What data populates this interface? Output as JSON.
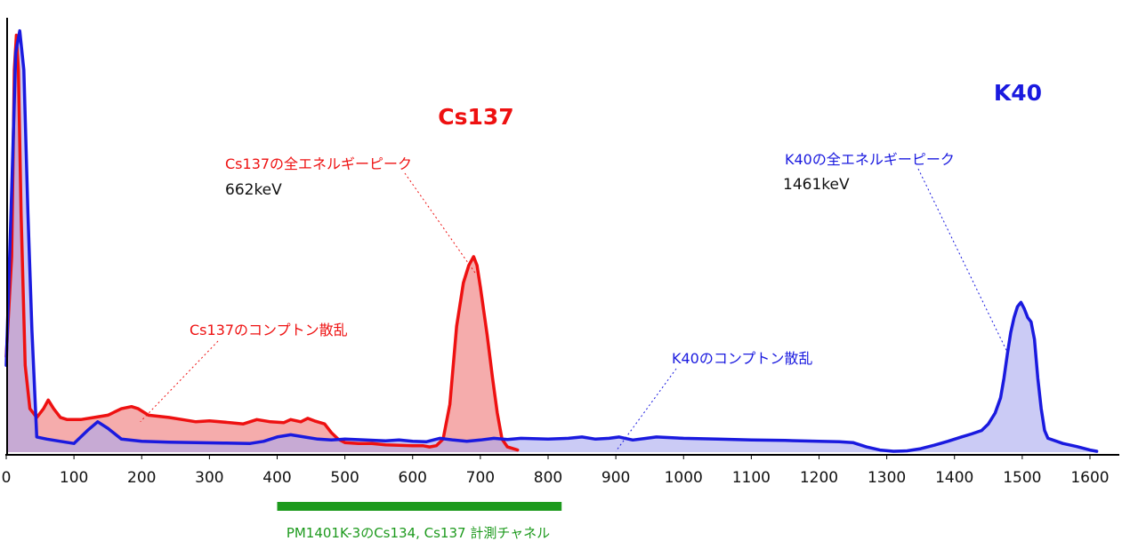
{
  "chart_data": {
    "type": "area",
    "x_ticks": [
      0,
      100,
      200,
      300,
      400,
      500,
      600,
      700,
      800,
      900,
      1000,
      1100,
      1200,
      1300,
      1400,
      1500,
      1600
    ],
    "xlim": [
      0,
      1610
    ],
    "ylim": [
      0,
      100
    ],
    "grid": false,
    "colors": {
      "cs137_line": "#ee1111",
      "cs137_fill": "#f08080",
      "k40_line": "#1a1adf",
      "k40_fill": "#a8a8ee",
      "window_bar": "#1d9a1d",
      "label_black": "#111111"
    },
    "series": [
      {
        "name": "Cs137",
        "points": [
          [
            0,
            22
          ],
          [
            8,
            45
          ],
          [
            12,
            88
          ],
          [
            15,
            96
          ],
          [
            18,
            88
          ],
          [
            22,
            55
          ],
          [
            28,
            20
          ],
          [
            35,
            10
          ],
          [
            45,
            8
          ],
          [
            55,
            10
          ],
          [
            62,
            12
          ],
          [
            70,
            10
          ],
          [
            80,
            8
          ],
          [
            90,
            7.5
          ],
          [
            110,
            7.5
          ],
          [
            130,
            8
          ],
          [
            150,
            8.5
          ],
          [
            170,
            10
          ],
          [
            185,
            10.5
          ],
          [
            195,
            10
          ],
          [
            210,
            8.5
          ],
          [
            240,
            8
          ],
          [
            260,
            7.5
          ],
          [
            280,
            7
          ],
          [
            300,
            7.2
          ],
          [
            330,
            6.8
          ],
          [
            350,
            6.5
          ],
          [
            370,
            7.5
          ],
          [
            390,
            7
          ],
          [
            410,
            6.8
          ],
          [
            420,
            7.5
          ],
          [
            435,
            7
          ],
          [
            445,
            7.8
          ],
          [
            455,
            7.2
          ],
          [
            470,
            6.5
          ],
          [
            480,
            4.5
          ],
          [
            490,
            3
          ],
          [
            500,
            2.2
          ],
          [
            520,
            2
          ],
          [
            540,
            2
          ],
          [
            560,
            1.7
          ],
          [
            580,
            1.6
          ],
          [
            600,
            1.5
          ],
          [
            615,
            1.5
          ],
          [
            625,
            1.2
          ],
          [
            635,
            1.5
          ],
          [
            645,
            3
          ],
          [
            655,
            11
          ],
          [
            665,
            29
          ],
          [
            675,
            39
          ],
          [
            683,
            43
          ],
          [
            690,
            45
          ],
          [
            695,
            43
          ],
          [
            700,
            38
          ],
          [
            710,
            27
          ],
          [
            718,
            17
          ],
          [
            725,
            9
          ],
          [
            732,
            3
          ],
          [
            740,
            1.2
          ],
          [
            755,
            0.5
          ]
        ]
      },
      {
        "name": "K40",
        "points": [
          [
            0,
            20
          ],
          [
            8,
            60
          ],
          [
            14,
            92
          ],
          [
            20,
            97
          ],
          [
            26,
            88
          ],
          [
            32,
            55
          ],
          [
            38,
            28
          ],
          [
            45,
            3.5
          ],
          [
            60,
            3
          ],
          [
            80,
            2.5
          ],
          [
            100,
            2
          ],
          [
            120,
            5
          ],
          [
            135,
            7
          ],
          [
            150,
            5.5
          ],
          [
            170,
            3
          ],
          [
            200,
            2.5
          ],
          [
            240,
            2.3
          ],
          [
            280,
            2.2
          ],
          [
            320,
            2.1
          ],
          [
            360,
            2
          ],
          [
            380,
            2.5
          ],
          [
            400,
            3.5
          ],
          [
            420,
            4
          ],
          [
            440,
            3.5
          ],
          [
            460,
            3
          ],
          [
            480,
            2.8
          ],
          [
            500,
            3
          ],
          [
            560,
            2.6
          ],
          [
            580,
            2.8
          ],
          [
            600,
            2.5
          ],
          [
            620,
            2.4
          ],
          [
            640,
            3.2
          ],
          [
            660,
            2.8
          ],
          [
            680,
            2.5
          ],
          [
            700,
            2.8
          ],
          [
            720,
            3.2
          ],
          [
            740,
            2.9
          ],
          [
            760,
            3.2
          ],
          [
            800,
            3
          ],
          [
            830,
            3.2
          ],
          [
            850,
            3.5
          ],
          [
            870,
            3
          ],
          [
            890,
            3.2
          ],
          [
            905,
            3.5
          ],
          [
            925,
            2.8
          ],
          [
            945,
            3.2
          ],
          [
            960,
            3.5
          ],
          [
            1000,
            3.2
          ],
          [
            1050,
            3
          ],
          [
            1100,
            2.8
          ],
          [
            1150,
            2.7
          ],
          [
            1200,
            2.5
          ],
          [
            1230,
            2.4
          ],
          [
            1250,
            2.2
          ],
          [
            1270,
            1.2
          ],
          [
            1290,
            0.5
          ],
          [
            1310,
            0.2
          ],
          [
            1330,
            0.3
          ],
          [
            1350,
            0.8
          ],
          [
            1370,
            1.6
          ],
          [
            1390,
            2.5
          ],
          [
            1410,
            3.5
          ],
          [
            1425,
            4.2
          ],
          [
            1440,
            5
          ],
          [
            1450,
            6.5
          ],
          [
            1460,
            9
          ],
          [
            1468,
            12.5
          ],
          [
            1473,
            17
          ],
          [
            1478,
            22.5
          ],
          [
            1483,
            27.5
          ],
          [
            1488,
            31
          ],
          [
            1493,
            33.5
          ],
          [
            1498,
            34.5
          ],
          [
            1503,
            33
          ],
          [
            1508,
            31
          ],
          [
            1513,
            30
          ],
          [
            1518,
            26
          ],
          [
            1523,
            17
          ],
          [
            1528,
            10
          ],
          [
            1533,
            5
          ],
          [
            1538,
            3.2
          ],
          [
            1560,
            2
          ],
          [
            1580,
            1.3
          ],
          [
            1600,
            0.5
          ],
          [
            1610,
            0.2
          ]
        ]
      }
    ],
    "annotations": {
      "cs137_title": "Cs137",
      "k40_title": "K40",
      "cs137_peak_label": "Cs137の全エネルギーピーク",
      "cs137_peak_energy": "662keV",
      "k40_peak_label": "K40の全エネルギーピーク",
      "k40_peak_energy": "1461keV",
      "cs137_compton": "Cs137のコンプトン散乱",
      "k40_compton": "K40のコンプトン散乱",
      "window_label": "PM1401K-3のCs134, Cs137 計測チャネル"
    },
    "measurement_window": [
      400,
      820
    ]
  }
}
